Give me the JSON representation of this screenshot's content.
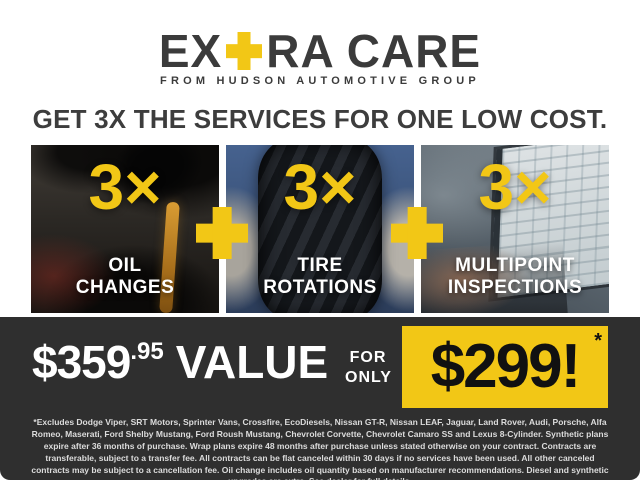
{
  "colors": {
    "accent_yellow": "#f2c716",
    "charcoal": "#3b3b3b",
    "band_dark": "#2f2f2f"
  },
  "brand": {
    "logo_part1": "EX",
    "logo_part2": "RA CARE",
    "tagline": "FROM HUDSON AUTOMOTIVE GROUP"
  },
  "headline": {
    "text": "GET 3X THE SERVICES FOR ONE LOW COST."
  },
  "services": [
    {
      "multiplier": "3×",
      "label": "OIL\nCHANGES",
      "image": "oil-pour-photo"
    },
    {
      "multiplier": "3×",
      "label": "TIRE\nROTATIONS",
      "image": "tire-hold-photo"
    },
    {
      "multiplier": "3×",
      "label": "MULTIPOINT\nINSPECTIONS",
      "image": "laptop-inspection-photo"
    }
  ],
  "offer": {
    "value_dollars": "$359",
    "value_cents": ".95",
    "value_label": "VALUE",
    "for_only": "FOR\nONLY",
    "sale_price": "$299!",
    "sale_asterisk": "*"
  },
  "disclaimer": {
    "text": "*Excludes Dodge Viper, SRT Motors, Sprinter Vans, Crossfire, EcoDiesels, Nissan GT-R, Nissan LEAF, Jaguar, Land Rover, Audi, Porsche, Alfa Romeo, Maserati, Ford Shelby Mustang, Ford Roush Mustang, Chevrolet Corvette, Chevrolet Camaro SS and Lexus 8-Cylinder. Synthetic plans expire after 36 months of purchase. Wrap plans expire 48 months after purchase unless stated otherwise on your contract. Contracts are transferable, subject to a transfer fee. All contracts can be flat canceled within 30 days if no services have been used. All other canceled contracts may be subject to a cancellation fee. Oil change includes oil quantity based on manufacturer recommendations. Diesel and synthetic upgrades are extra. See dealer for full details."
  }
}
